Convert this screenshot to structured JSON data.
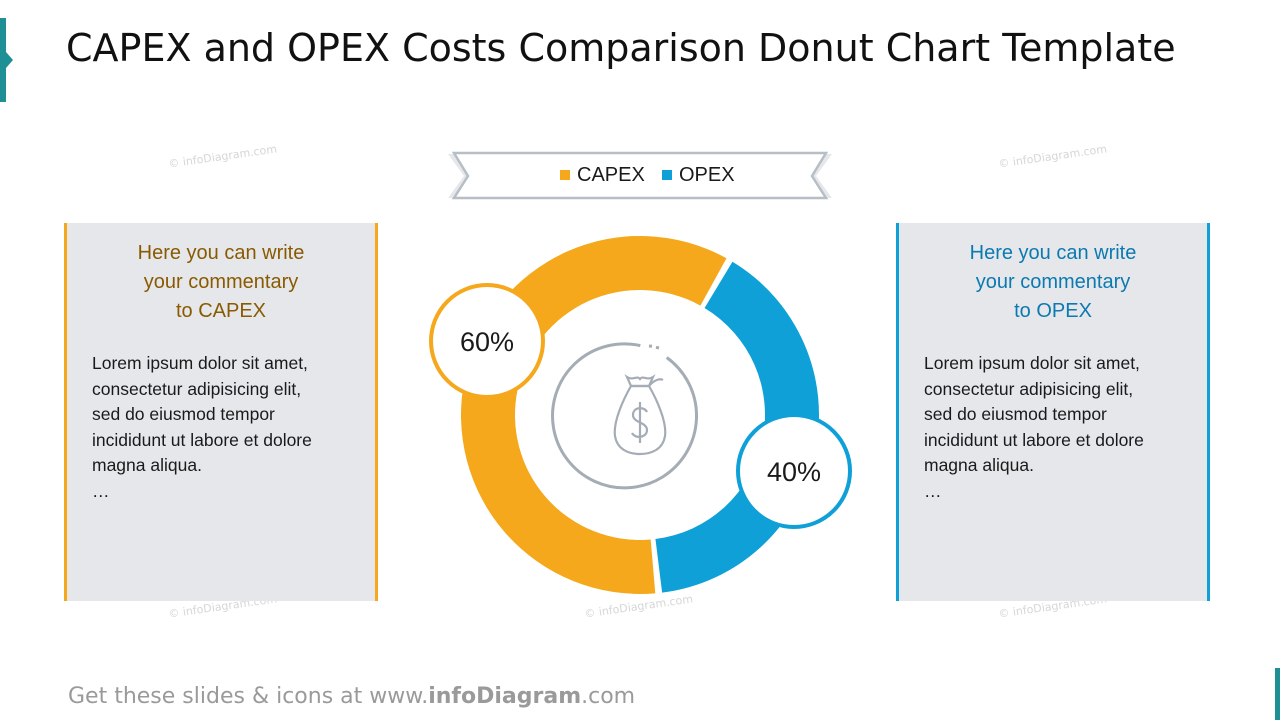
{
  "title": "CAPEX and OPEX Costs Comparison Donut Chart Template",
  "footer": {
    "prefix": "Get these slides & icons at www.",
    "brand": "infoDiagram",
    "suffix": ".com"
  },
  "watermark": "© infoDiagram.com",
  "colors": {
    "capex": "#f5a81c",
    "opex": "#10a0d8",
    "panel_bg": "#e5e7eb",
    "accent": "#1f8f96"
  },
  "center_icon": "money-bag-icon",
  "panels": {
    "capex": {
      "heading": [
        "Here you can write",
        "your commentary",
        "to CAPEX"
      ],
      "body": [
        "Lorem ipsum dolor sit amet,",
        "consectetur adipisicing elit,",
        "sed do eiusmod tempor",
        "incididunt ut labore et dolore",
        "magna aliqua.",
        "…"
      ]
    },
    "opex": {
      "heading": [
        "Here you can write",
        "your commentary",
        "to OPEX"
      ],
      "body": [
        "Lorem ipsum dolor sit amet,",
        "consectetur adipisicing elit,",
        "sed do eiusmod tempor",
        "incididunt ut labore et dolore",
        "magna aliqua.",
        "…"
      ]
    }
  },
  "chart_data": {
    "type": "pie",
    "variant": "donut",
    "categories": [
      "CAPEX",
      "OPEX"
    ],
    "values": [
      60,
      40
    ],
    "labels": [
      "60%",
      "40%"
    ],
    "unit": "%",
    "legend": {
      "entries": [
        "CAPEX",
        "OPEX"
      ],
      "placement": "top-center"
    }
  }
}
